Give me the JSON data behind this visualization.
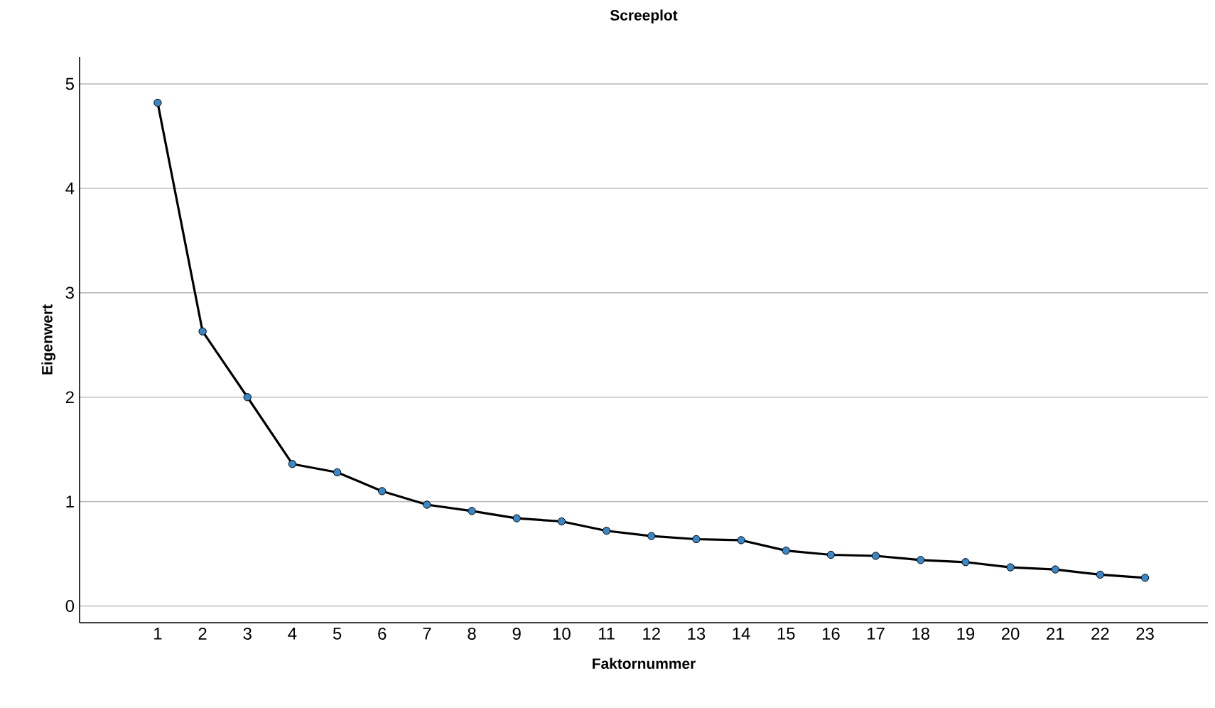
{
  "chart_data": {
    "type": "line",
    "title": "Screeplot",
    "xlabel": "Faktornummer",
    "ylabel": "Eigenwert",
    "categories": [
      "1",
      "2",
      "3",
      "4",
      "5",
      "6",
      "7",
      "8",
      "9",
      "10",
      "11",
      "12",
      "13",
      "14",
      "15",
      "16",
      "17",
      "18",
      "19",
      "20",
      "21",
      "22",
      "23"
    ],
    "series": [
      {
        "color": "#3a87c8",
        "values": [
          4.82,
          2.63,
          2.0,
          1.36,
          1.28,
          1.1,
          0.97,
          0.91,
          0.84,
          0.81,
          0.72,
          0.67,
          0.64,
          0.63,
          0.53,
          0.49,
          0.48,
          0.44,
          0.42,
          0.37,
          0.35,
          0.3,
          0.27
        ]
      }
    ],
    "ylim": [
      -0.16,
      5.26
    ],
    "yticks": [
      0,
      1,
      2,
      3,
      4,
      5
    ],
    "grid": "y",
    "marker": "circle",
    "line_style": "solid"
  }
}
